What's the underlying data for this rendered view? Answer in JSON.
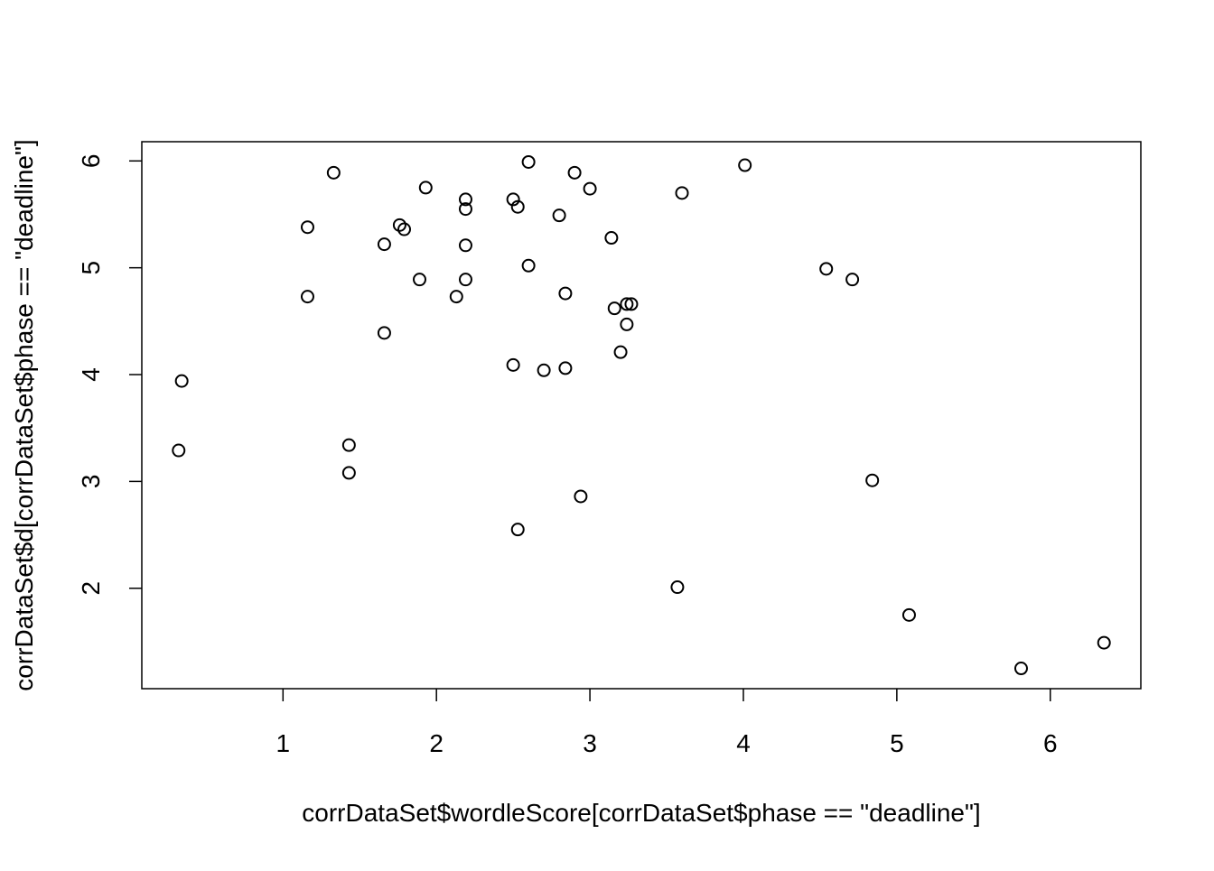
{
  "chart_data": {
    "type": "scatter",
    "xlabel": "corrDataSet$wordleScore[corrDataSet$phase == \"deadline\"]",
    "ylabel": "corrDataSet$d[corrDataSet$phase == \"deadline\"]",
    "x": [
      0.32,
      0.34,
      1.16,
      1.16,
      1.33,
      1.43,
      1.43,
      1.66,
      1.66,
      1.76,
      1.79,
      1.89,
      1.93,
      2.13,
      2.19,
      2.19,
      2.19,
      2.19,
      2.5,
      2.53,
      2.5,
      2.53,
      2.6,
      2.6,
      2.7,
      2.8,
      2.84,
      2.84,
      2.9,
      2.94,
      3.0,
      3.14,
      3.16,
      3.2,
      3.24,
      3.27,
      3.24,
      3.57,
      3.6,
      4.01,
      4.54,
      4.71,
      4.84,
      5.08,
      5.81,
      6.35
    ],
    "values": [
      3.29,
      3.94,
      5.38,
      4.73,
      5.89,
      3.34,
      3.08,
      5.22,
      4.39,
      5.4,
      5.36,
      4.89,
      5.75,
      4.73,
      5.64,
      5.55,
      5.21,
      4.89,
      5.64,
      5.57,
      4.09,
      2.55,
      5.99,
      5.02,
      4.04,
      5.49,
      4.76,
      4.06,
      5.89,
      2.86,
      5.74,
      5.28,
      4.62,
      4.21,
      4.66,
      4.66,
      4.47,
      2.01,
      5.7,
      5.96,
      4.99,
      4.89,
      3.01,
      1.75,
      1.25,
      1.49
    ],
    "color": "#000000",
    "xlim": [
      0.08,
      6.59
    ],
    "ylim": [
      1.06,
      6.18
    ],
    "xticks": [
      1,
      2,
      3,
      4,
      5,
      6
    ],
    "yticks": [
      2,
      3,
      4,
      5,
      6
    ]
  }
}
